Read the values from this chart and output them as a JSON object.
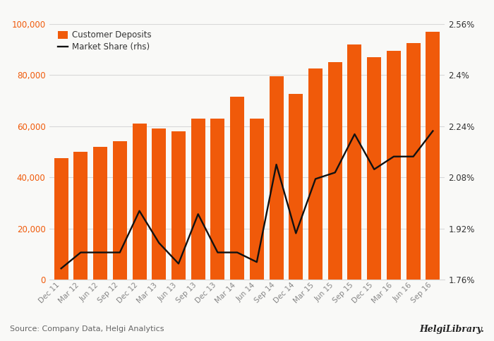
{
  "categories": [
    "Dec 11",
    "Mar 12",
    "Jun 12",
    "Sep 12",
    "Dec 12",
    "Mar 13",
    "Jun 13",
    "Sep 13",
    "Dec 13",
    "Mar 14",
    "Jun 14",
    "Sep 14",
    "Dec 14",
    "Mar 15",
    "Jun 15",
    "Sep 15",
    "Dec 15",
    "Mar 16",
    "Jun 16",
    "Sep 16"
  ],
  "bar_values": [
    47500,
    50000,
    52000,
    54000,
    61000,
    59000,
    58000,
    63000,
    63000,
    71500,
    63000,
    79500,
    72500,
    82500,
    85000,
    92000,
    87000,
    89500,
    92500,
    97000
  ],
  "line_values": [
    1.795,
    1.845,
    1.845,
    1.845,
    1.975,
    1.875,
    1.81,
    1.965,
    1.845,
    1.845,
    1.815,
    2.12,
    1.905,
    2.075,
    2.095,
    2.215,
    2.105,
    2.145,
    2.145,
    2.225
  ],
  "bar_color": "#f05a0a",
  "line_color": "#111111",
  "bg_color": "#f9f9f7",
  "left_ylim": [
    0,
    100000
  ],
  "right_ylim": [
    1.76,
    2.56
  ],
  "left_yticks": [
    0,
    20000,
    40000,
    60000,
    80000,
    100000
  ],
  "right_yticks": [
    1.76,
    1.92,
    2.08,
    2.24,
    2.4,
    2.56
  ],
  "left_ytick_labels": [
    "0",
    "20,000",
    "40,000",
    "60,000",
    "80,000",
    "100,000"
  ],
  "right_ytick_labels": [
    "1.76%",
    "1.92%",
    "2.08%",
    "2.24%",
    "2.4%",
    "2.56%"
  ],
  "legend_bar_label": "Customer Deposits",
  "legend_line_label": "Market Share (rhs)",
  "source_text": "Source: Company Data, Helgi Analytics",
  "helgi_text": "HelgiLibrary.",
  "bar_label_color": "#f05a0a",
  "grid_color": "#d8d8d8",
  "tick_color": "#888888",
  "spine_color": "#d8d8d8"
}
